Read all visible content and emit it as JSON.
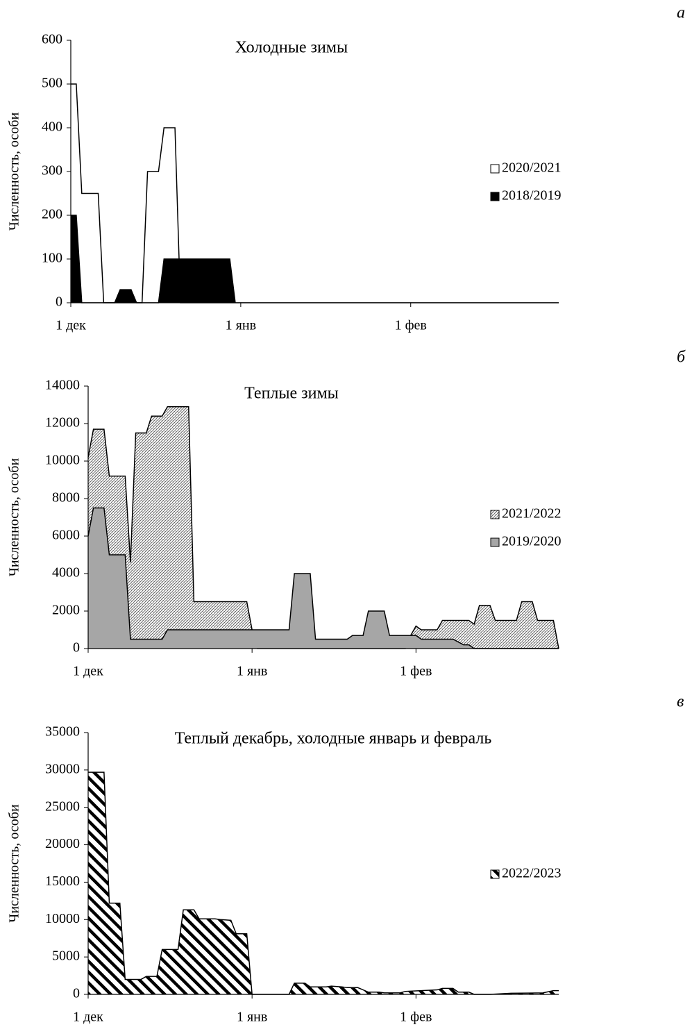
{
  "chart_data": [
    {
      "type": "area",
      "panel": "а",
      "title": "Холодные зимы",
      "ylabel": "Численность, особи",
      "xlim": [
        0,
        89
      ],
      "xticks": [
        {
          "value": 0,
          "label": "1 дек"
        },
        {
          "value": 31,
          "label": "1 янв"
        },
        {
          "value": 62,
          "label": "1 фев"
        }
      ],
      "ylim": [
        0,
        600
      ],
      "yticks": [
        0,
        100,
        200,
        300,
        400,
        500,
        600
      ],
      "legend": "right",
      "series": [
        {
          "name": "2020/2021",
          "color": "#ffffff",
          "x": [
            0,
            1,
            2,
            5,
            6,
            13,
            14,
            16,
            17,
            19,
            20,
            89
          ],
          "values": [
            500,
            500,
            250,
            250,
            0,
            0,
            300,
            300,
            400,
            400,
            0,
            0
          ]
        },
        {
          "name": "2018/2019",
          "color": "#000000",
          "x": [
            0,
            1,
            2,
            8,
            9,
            11,
            12,
            16,
            17,
            29,
            30
          ],
          "values": [
            200,
            200,
            0,
            0,
            30,
            30,
            0,
            0,
            100,
            100,
            0
          ]
        }
      ]
    },
    {
      "type": "area",
      "panel": "б",
      "title": "Теплые зимы",
      "ylabel": "Численность, особи",
      "xlim": [
        0,
        89
      ],
      "xticks": [
        {
          "value": 0,
          "label": "1 дек"
        },
        {
          "value": 31,
          "label": "1 янв"
        },
        {
          "value": 62,
          "label": "1 фев"
        }
      ],
      "ylim": [
        0,
        14000
      ],
      "yticks": [
        0,
        2000,
        4000,
        6000,
        8000,
        10000,
        12000,
        14000
      ],
      "legend": "right",
      "series": [
        {
          "name": "2021/2022",
          "pattern": "dense-hatch",
          "x": [
            0,
            1,
            3,
            4,
            7,
            8,
            9,
            11,
            12,
            14,
            15,
            19,
            20,
            30,
            31,
            32,
            60,
            61,
            62,
            63,
            66,
            67,
            72,
            73,
            74,
            76,
            77,
            81,
            82,
            84,
            85,
            88,
            89
          ],
          "values": [
            10200,
            11700,
            11700,
            9200,
            9200,
            4600,
            11500,
            11500,
            12400,
            12400,
            12900,
            12900,
            2500,
            2500,
            1000,
            0,
            0,
            700,
            1200,
            1000,
            1000,
            1500,
            1500,
            1300,
            2300,
            2300,
            1500,
            1500,
            2500,
            2500,
            1500,
            1500,
            0
          ]
        },
        {
          "name": "2019/2020",
          "color": "#a6a6a6",
          "x": [
            0,
            1,
            3,
            4,
            7,
            8,
            14,
            15,
            38,
            39,
            42,
            43,
            49,
            50,
            52,
            53,
            56,
            57,
            62,
            63,
            69,
            71,
            72,
            73,
            89
          ],
          "values": [
            6000,
            7500,
            7500,
            5000,
            5000,
            500,
            500,
            1000,
            1000,
            4000,
            4000,
            500,
            500,
            700,
            700,
            2000,
            2000,
            700,
            700,
            500,
            500,
            200,
            200,
            0,
            0
          ]
        }
      ]
    },
    {
      "type": "area",
      "panel": "в",
      "title": "Теплый декабрь, холодные январь и февраль",
      "ylabel": "Численность, особи",
      "xlim": [
        0,
        89
      ],
      "xticks": [
        {
          "value": 0,
          "label": "1 дек"
        },
        {
          "value": 31,
          "label": "1 янв"
        },
        {
          "value": 62,
          "label": "1 фев"
        }
      ],
      "ylim": [
        0,
        35000
      ],
      "yticks": [
        0,
        5000,
        10000,
        15000,
        20000,
        25000,
        30000,
        35000
      ],
      "legend": "right",
      "series": [
        {
          "name": "2022/2023",
          "pattern": "diagonal",
          "x": [
            0,
            3,
            4,
            6,
            7,
            10,
            11,
            13,
            14,
            17,
            18,
            20,
            21,
            24,
            25,
            27,
            28,
            30,
            31,
            38,
            39,
            41,
            42,
            45,
            46,
            48,
            49,
            51,
            53,
            55,
            56,
            59,
            60,
            63,
            66,
            67,
            69,
            70,
            72,
            73,
            76,
            80,
            86,
            88,
            89
          ],
          "values": [
            29700,
            29700,
            12200,
            12200,
            2000,
            2000,
            2400,
            2400,
            6000,
            6000,
            11300,
            11300,
            10100,
            10100,
            10000,
            9900,
            8100,
            8100,
            0,
            0,
            1500,
            1500,
            1000,
            1000,
            1100,
            1000,
            900,
            900,
            300,
            300,
            200,
            200,
            400,
            500,
            600,
            800,
            800,
            300,
            300,
            0,
            0,
            150,
            200,
            500,
            500
          ]
        }
      ]
    }
  ]
}
